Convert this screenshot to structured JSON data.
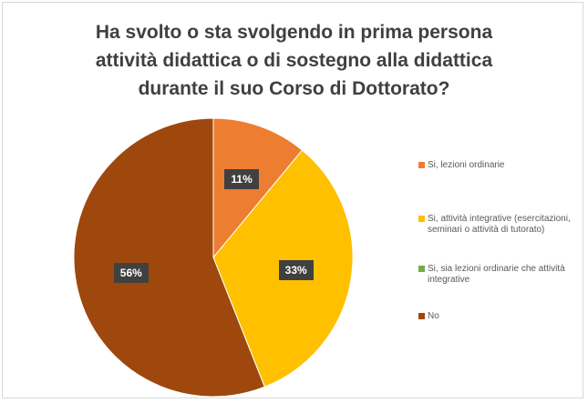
{
  "chart_data": {
    "type": "pie",
    "title": "Ha svolto o sta svolgendo in prima persona attività didattica o di sostegno alla didattica durante il suo Corso di Dottorato?",
    "title_lines": [
      "Ha svolto o sta svolgendo in prima persona",
      "attività didattica o di sostegno alla didattica",
      "durante il suo Corso di Dottorato?"
    ],
    "categories": [
      "Si, lezioni ordinarie",
      "Si, attività integrative (esercitazioni, seminari o attività di tutorato)",
      "Si, sia lezioni ordinarie che attività integrative",
      "No"
    ],
    "values": [
      11,
      33,
      0,
      56
    ],
    "data_labels": [
      "11%",
      "33%",
      "",
      "56%"
    ],
    "colors": [
      "#ed7d31",
      "#ffc000",
      "#70ad47",
      "#9e480e"
    ],
    "legend_position": "right"
  }
}
